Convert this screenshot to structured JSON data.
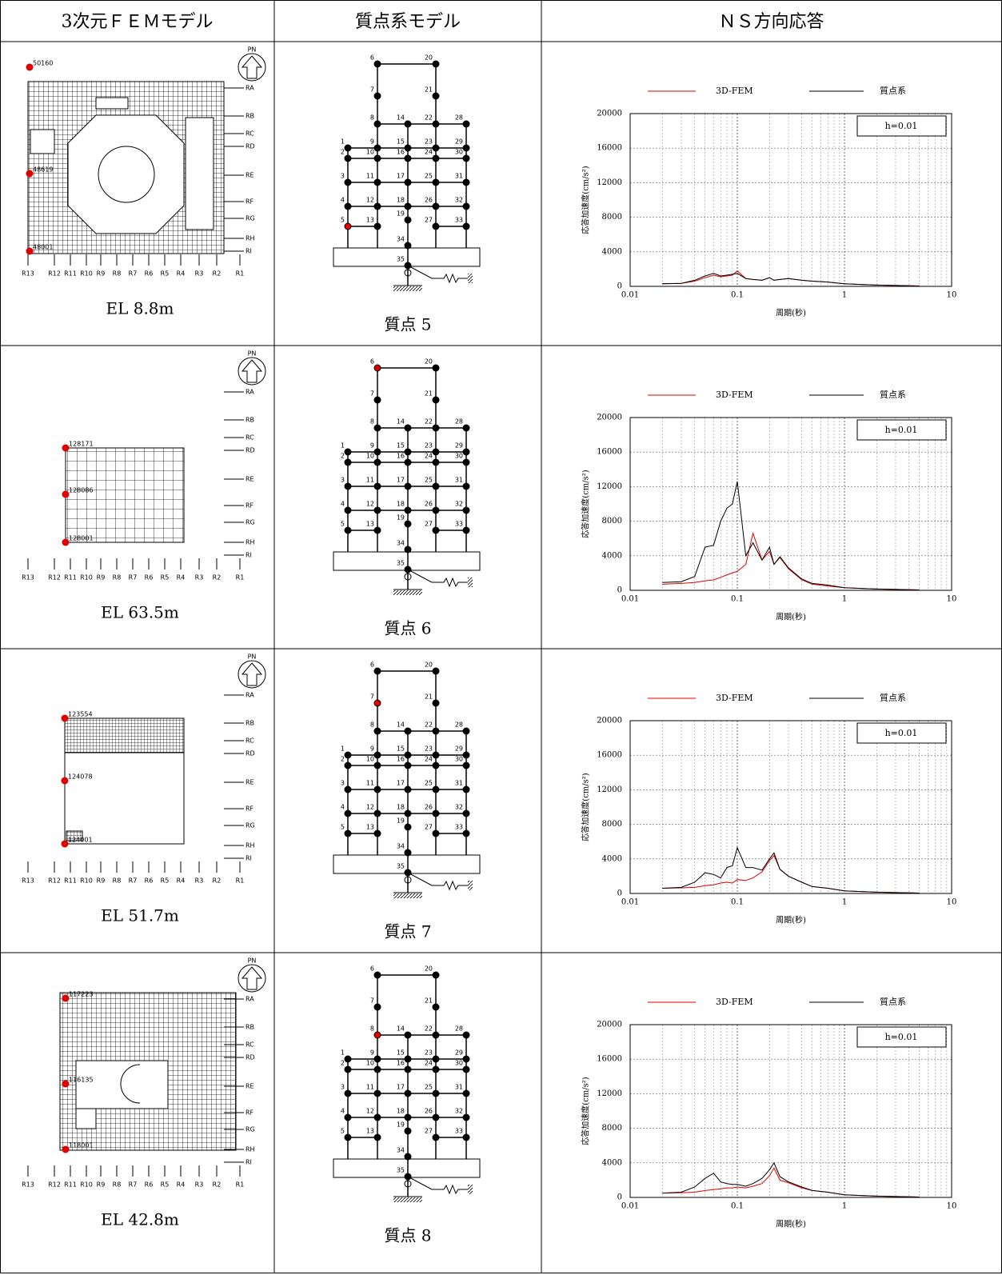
{
  "table": {
    "headers": [
      "3次元ＦＥＭモデル",
      "質点系モデル",
      "ＮＳ方向応答"
    ],
    "north": "PN",
    "grid_rows": [
      "RA",
      "RB",
      "RC",
      "RD",
      "RE",
      "RF",
      "RG",
      "RH",
      "RI"
    ],
    "grid_cols": [
      "R13",
      "R12",
      "R11",
      "R10",
      "R9",
      "R8",
      "R7",
      "R6",
      "R5",
      "R4",
      "R3",
      "R2",
      "R1"
    ],
    "mass_nodes": [
      "1",
      "2",
      "3",
      "4",
      "5",
      "6",
      "7",
      "8",
      "9",
      "10",
      "11",
      "12",
      "13",
      "14",
      "15",
      "16",
      "17",
      "18",
      "19",
      "20",
      "21",
      "22",
      "23",
      "24",
      "25",
      "26",
      "27",
      "28",
      "29",
      "30",
      "31",
      "32",
      "33",
      "34",
      "35"
    ],
    "rows": [
      {
        "elevation": "EL 8.8m",
        "fem_nodes": [
          "50160",
          "48619",
          "48001"
        ],
        "mass_caption": "質点 5",
        "highlight_node": 5
      },
      {
        "elevation": "EL 63.5m",
        "fem_nodes": [
          "128171",
          "128086",
          "128001"
        ],
        "mass_caption": "質点 6",
        "highlight_node": 6
      },
      {
        "elevation": "EL 51.7m",
        "fem_nodes": [
          "123554",
          "124078",
          "124001"
        ],
        "mass_caption": "質点 7",
        "highlight_node": 7
      },
      {
        "elevation": "EL 42.8m",
        "fem_nodes": [
          "117223",
          "116135",
          "118001"
        ],
        "mass_caption": "質点 8",
        "highlight_node": 8
      }
    ]
  },
  "chart_data": [
    {
      "type": "line",
      "xlabel": "周期(秒)",
      "ylabel": "応答加速度(cm/s²)",
      "annotation": "h=0.01",
      "log_x": true,
      "grid": true,
      "xlim": [
        0.01,
        10
      ],
      "ylim": [
        0,
        20000
      ],
      "xticks": [
        0.01,
        0.1,
        1,
        10
      ],
      "yticks": [
        0,
        4000,
        8000,
        12000,
        16000,
        20000
      ],
      "xminorticks": [
        0.02,
        0.03,
        0.04,
        0.05,
        0.06,
        0.07,
        0.08,
        0.09,
        0.2,
        0.3,
        0.4,
        0.5,
        0.6,
        0.7,
        0.8,
        0.9,
        2,
        3,
        4,
        5,
        6,
        7,
        8,
        9
      ],
      "x": [
        0.02,
        0.03,
        0.04,
        0.05,
        0.06,
        0.07,
        0.08,
        0.09,
        0.1,
        0.12,
        0.14,
        0.17,
        0.2,
        0.22,
        0.25,
        0.3,
        0.4,
        0.5,
        0.7,
        1,
        1.5,
        2,
        3,
        5
      ],
      "series": [
        {
          "name": "3D-FEM",
          "color": "#e00000",
          "values": [
            300,
            350,
            600,
            1000,
            1300,
            1100,
            1200,
            1300,
            1800,
            900,
            800,
            700,
            1000,
            700,
            800,
            900,
            700,
            600,
            500,
            300,
            200,
            150,
            100,
            50
          ]
        },
        {
          "name": "質点系",
          "color": "#000000",
          "values": [
            300,
            350,
            700,
            1200,
            1500,
            1200,
            1300,
            1400,
            1500,
            900,
            800,
            700,
            1000,
            700,
            800,
            900,
            700,
            600,
            500,
            300,
            200,
            150,
            100,
            50
          ]
        }
      ]
    },
    {
      "type": "line",
      "xlabel": "周期(秒)",
      "ylabel": "応答加速度(cm/s²)",
      "annotation": "h=0.01",
      "log_x": true,
      "grid": true,
      "xlim": [
        0.01,
        10
      ],
      "ylim": [
        0,
        20000
      ],
      "xticks": [
        0.01,
        0.1,
        1,
        10
      ],
      "yticks": [
        0,
        4000,
        8000,
        12000,
        16000,
        20000
      ],
      "xminorticks": [
        0.02,
        0.03,
        0.04,
        0.05,
        0.06,
        0.07,
        0.08,
        0.09,
        0.2,
        0.3,
        0.4,
        0.5,
        0.6,
        0.7,
        0.8,
        0.9,
        2,
        3,
        4,
        5,
        6,
        7,
        8,
        9
      ],
      "x": [
        0.02,
        0.03,
        0.04,
        0.05,
        0.06,
        0.07,
        0.08,
        0.09,
        0.1,
        0.12,
        0.14,
        0.17,
        0.2,
        0.22,
        0.25,
        0.3,
        0.4,
        0.5,
        0.7,
        1,
        1.5,
        2,
        3,
        5
      ],
      "series": [
        {
          "name": "3D-FEM",
          "color": "#e00000",
          "values": [
            700,
            800,
            900,
            1100,
            1200,
            1500,
            1800,
            2000,
            2200,
            3000,
            6600,
            3500,
            4500,
            3000,
            3800,
            2500,
            1200,
            700,
            500,
            300,
            200,
            150,
            100,
            50
          ]
        },
        {
          "name": "質点系",
          "color": "#000000",
          "values": [
            900,
            1000,
            1600,
            5000,
            5200,
            8000,
            9500,
            10000,
            12600,
            4000,
            5500,
            3500,
            5000,
            3000,
            3900,
            2600,
            1300,
            800,
            600,
            300,
            200,
            150,
            100,
            50
          ]
        }
      ]
    },
    {
      "type": "line",
      "xlabel": "周期(秒)",
      "ylabel": "応答加速度(cm/s²)",
      "annotation": "h=0.01",
      "log_x": true,
      "grid": true,
      "xlim": [
        0.01,
        10
      ],
      "ylim": [
        0,
        20000
      ],
      "xticks": [
        0.01,
        0.1,
        1,
        10
      ],
      "yticks": [
        0,
        4000,
        8000,
        12000,
        16000,
        20000
      ],
      "xminorticks": [
        0.02,
        0.03,
        0.04,
        0.05,
        0.06,
        0.07,
        0.08,
        0.09,
        0.2,
        0.3,
        0.4,
        0.5,
        0.6,
        0.7,
        0.8,
        0.9,
        2,
        3,
        4,
        5,
        6,
        7,
        8,
        9
      ],
      "x": [
        0.02,
        0.03,
        0.04,
        0.05,
        0.06,
        0.07,
        0.08,
        0.09,
        0.1,
        0.12,
        0.14,
        0.17,
        0.2,
        0.22,
        0.25,
        0.3,
        0.4,
        0.5,
        0.7,
        1,
        1.5,
        2,
        3,
        5
      ],
      "series": [
        {
          "name": "3D-FEM",
          "color": "#e00000",
          "values": [
            600,
            650,
            700,
            900,
            1000,
            1200,
            1300,
            1200,
            1600,
            1500,
            1800,
            2500,
            3800,
            4400,
            2800,
            2000,
            1300,
            800,
            600,
            300,
            200,
            150,
            100,
            50
          ]
        },
        {
          "name": "質点系",
          "color": "#000000",
          "values": [
            600,
            700,
            1300,
            2400,
            2200,
            1800,
            3000,
            3200,
            5300,
            3000,
            3000,
            2700,
            4000,
            4700,
            2800,
            2000,
            1300,
            800,
            600,
            300,
            200,
            150,
            100,
            50
          ]
        }
      ]
    },
    {
      "type": "line",
      "xlabel": "周期(秒)",
      "ylabel": "応答加速度(cm/s²)",
      "annotation": "h=0.01",
      "log_x": true,
      "grid": true,
      "xlim": [
        0.01,
        10
      ],
      "ylim": [
        0,
        20000
      ],
      "xticks": [
        0.01,
        0.1,
        1,
        10
      ],
      "yticks": [
        0,
        4000,
        8000,
        12000,
        16000,
        20000
      ],
      "xminorticks": [
        0.02,
        0.03,
        0.04,
        0.05,
        0.06,
        0.07,
        0.08,
        0.09,
        0.2,
        0.3,
        0.4,
        0.5,
        0.6,
        0.7,
        0.8,
        0.9,
        2,
        3,
        4,
        5,
        6,
        7,
        8,
        9
      ],
      "x": [
        0.02,
        0.03,
        0.04,
        0.05,
        0.06,
        0.07,
        0.08,
        0.09,
        0.1,
        0.12,
        0.14,
        0.17,
        0.2,
        0.22,
        0.25,
        0.3,
        0.4,
        0.5,
        0.7,
        1,
        1.5,
        2,
        3,
        5
      ],
      "series": [
        {
          "name": "3D-FEM",
          "color": "#e00000",
          "values": [
            500,
            550,
            600,
            800,
            900,
            1000,
            1100,
            1100,
            1200,
            1100,
            1300,
            1600,
            2500,
            3400,
            2000,
            1700,
            1100,
            800,
            600,
            300,
            200,
            150,
            100,
            50
          ]
        },
        {
          "name": "質点系",
          "color": "#000000",
          "values": [
            500,
            600,
            1200,
            2200,
            2800,
            1800,
            1600,
            1500,
            1500,
            1300,
            1600,
            2200,
            3200,
            4000,
            2400,
            1800,
            1200,
            800,
            600,
            300,
            200,
            150,
            100,
            50
          ]
        }
      ]
    }
  ]
}
